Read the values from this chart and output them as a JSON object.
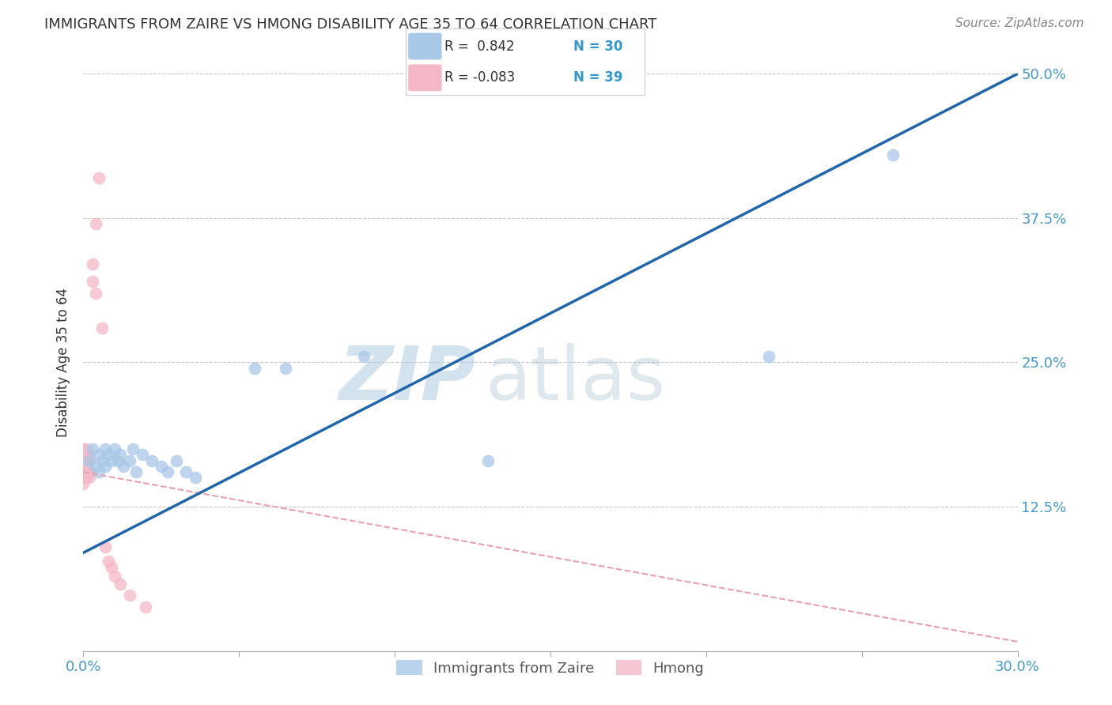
{
  "title": "IMMIGRANTS FROM ZAIRE VS HMONG DISABILITY AGE 35 TO 64 CORRELATION CHART",
  "source": "Source: ZipAtlas.com",
  "ylabel_label": "Disability Age 35 to 64",
  "xlim": [
    0.0,
    0.3
  ],
  "ylim": [
    0.0,
    0.5
  ],
  "xticks": [
    0.0,
    0.05,
    0.1,
    0.15,
    0.2,
    0.25,
    0.3
  ],
  "yticks": [
    0.0,
    0.125,
    0.25,
    0.375,
    0.5
  ],
  "blue_R": 0.842,
  "blue_N": 30,
  "pink_R": -0.083,
  "pink_N": 39,
  "blue_color": "#a8c8e8",
  "blue_line_color": "#2166ac",
  "pink_color": "#f4b8c8",
  "pink_line_color": "#e8a0b0",
  "blue_scatter_x": [
    0.002,
    0.003,
    0.004,
    0.005,
    0.005,
    0.006,
    0.007,
    0.007,
    0.008,
    0.009,
    0.01,
    0.011,
    0.012,
    0.013,
    0.015,
    0.016,
    0.017,
    0.019,
    0.022,
    0.025,
    0.027,
    0.03,
    0.033,
    0.036,
    0.055,
    0.065,
    0.09,
    0.13,
    0.22,
    0.26
  ],
  "blue_scatter_y": [
    0.165,
    0.175,
    0.16,
    0.17,
    0.155,
    0.165,
    0.175,
    0.16,
    0.17,
    0.165,
    0.175,
    0.165,
    0.17,
    0.16,
    0.165,
    0.175,
    0.155,
    0.17,
    0.165,
    0.16,
    0.155,
    0.165,
    0.155,
    0.15,
    0.245,
    0.245,
    0.255,
    0.165,
    0.255,
    0.43
  ],
  "pink_scatter_x": [
    0.0,
    0.0,
    0.0,
    0.0,
    0.0,
    0.0,
    0.0,
    0.0,
    0.001,
    0.001,
    0.001,
    0.001,
    0.001,
    0.001,
    0.001,
    0.001,
    0.001,
    0.001,
    0.001,
    0.001,
    0.001,
    0.002,
    0.002,
    0.002,
    0.002,
    0.002,
    0.003,
    0.003,
    0.004,
    0.004,
    0.005,
    0.006,
    0.007,
    0.008,
    0.009,
    0.01,
    0.012,
    0.015,
    0.02
  ],
  "pink_scatter_y": [
    0.155,
    0.16,
    0.165,
    0.17,
    0.175,
    0.15,
    0.165,
    0.145,
    0.16,
    0.165,
    0.17,
    0.155,
    0.165,
    0.17,
    0.155,
    0.16,
    0.175,
    0.155,
    0.165,
    0.15,
    0.16,
    0.165,
    0.155,
    0.17,
    0.155,
    0.15,
    0.32,
    0.335,
    0.31,
    0.37,
    0.41,
    0.28,
    0.09,
    0.078,
    0.072,
    0.065,
    0.058,
    0.048,
    0.038
  ],
  "blue_line_x": [
    0.0,
    0.3
  ],
  "blue_line_y": [
    0.085,
    0.5
  ],
  "pink_line_x": [
    0.0,
    0.3
  ],
  "pink_line_y": [
    0.155,
    0.008
  ],
  "watermark_zip": "ZIP",
  "watermark_atlas": "atlas",
  "background_color": "#ffffff",
  "grid_color": "#c8c8c8",
  "tick_color": "#4499cc",
  "text_color": "#333333",
  "source_color": "#888888",
  "legend_text_color": "#333333",
  "legend_n_color": "#3399cc"
}
